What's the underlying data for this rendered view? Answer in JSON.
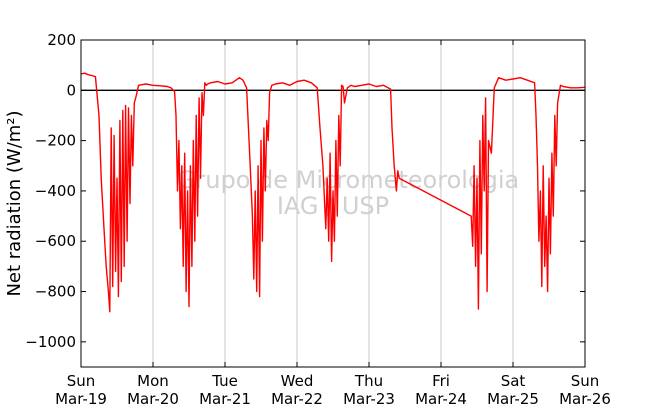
{
  "chart_data": {
    "type": "line",
    "ylabel": "Net radiation (W/m²)",
    "ylim": [
      -1100,
      200
    ],
    "yticks": [
      200,
      0,
      -200,
      -400,
      -600,
      -800,
      -1000
    ],
    "ytick_labels": [
      "200",
      "0",
      "−200",
      "−400",
      "−600",
      "−800",
      "−1000"
    ],
    "xlim": [
      0,
      7
    ],
    "xticks": [
      {
        "x": 0,
        "day": "Sun",
        "date": "Mar-19"
      },
      {
        "x": 1,
        "day": "Mon",
        "date": "Mar-20"
      },
      {
        "x": 2,
        "day": "Tue",
        "date": "Mar-21"
      },
      {
        "x": 3,
        "day": "Wed",
        "date": "Mar-22"
      },
      {
        "x": 4,
        "day": "Thu",
        "date": "Mar-23"
      },
      {
        "x": 5,
        "day": "Fri",
        "date": "Mar-24"
      },
      {
        "x": 6,
        "day": "Sat",
        "date": "Mar-25"
      },
      {
        "x": 7,
        "day": "Sun",
        "date": "Mar-26"
      }
    ],
    "grid": "vertical",
    "reference_line_y": 0,
    "series_color": "#ff0000",
    "watermark": [
      "Grupo de Micrometeorologia",
      "IAG / USP"
    ],
    "x": [
      0,
      0.05,
      0.1,
      0.2,
      0.25,
      0.28,
      0.32,
      0.35,
      0.38,
      0.4,
      0.42,
      0.44,
      0.46,
      0.48,
      0.5,
      0.52,
      0.54,
      0.56,
      0.58,
      0.6,
      0.62,
      0.64,
      0.66,
      0.68,
      0.7,
      0.72,
      0.74,
      0.76,
      0.8,
      0.9,
      1,
      1.1,
      1.2,
      1.25,
      1.3,
      1.32,
      1.34,
      1.36,
      1.38,
      1.4,
      1.42,
      1.44,
      1.46,
      1.48,
      1.5,
      1.52,
      1.54,
      1.56,
      1.58,
      1.6,
      1.62,
      1.64,
      1.66,
      1.68,
      1.7,
      1.72,
      1.74,
      1.76,
      1.8,
      1.9,
      2,
      2.1,
      2.2,
      2.25,
      2.3,
      2.35,
      2.38,
      2.4,
      2.42,
      2.44,
      2.46,
      2.48,
      2.5,
      2.52,
      2.54,
      2.56,
      2.58,
      2.6,
      2.62,
      2.65,
      2.7,
      2.8,
      2.9,
      3,
      3.1,
      3.2,
      3.28,
      3.32,
      3.36,
      3.4,
      3.42,
      3.44,
      3.46,
      3.48,
      3.5,
      3.52,
      3.54,
      3.56,
      3.58,
      3.6,
      3.62,
      3.64,
      3.66,
      3.7,
      3.75,
      3.8,
      3.9,
      4,
      4.1,
      4.2,
      4.3,
      4.32,
      4.35,
      4.38,
      4.4,
      4.42,
      5.42,
      5.44,
      5.46,
      5.48,
      5.5,
      5.52,
      5.54,
      5.56,
      5.58,
      5.6,
      5.62,
      5.64,
      5.66,
      5.7,
      5.74,
      5.8,
      5.9,
      6,
      6.1,
      6.2,
      6.3,
      6.32,
      6.34,
      6.36,
      6.38,
      6.4,
      6.42,
      6.44,
      6.46,
      6.48,
      6.5,
      6.52,
      6.54,
      6.56,
      6.58,
      6.6,
      6.62,
      6.66,
      6.7,
      6.8,
      6.9,
      7
    ],
    "y": [
      65,
      68,
      62,
      55,
      -100,
      -350,
      -550,
      -700,
      -800,
      -880,
      -150,
      -780,
      -180,
      -720,
      -350,
      -820,
      -120,
      -760,
      -80,
      -700,
      -60,
      -600,
      -70,
      -450,
      -100,
      -300,
      -50,
      -30,
      20,
      25,
      20,
      18,
      15,
      10,
      -5,
      -100,
      -400,
      -200,
      -550,
      -300,
      -700,
      -250,
      -800,
      -400,
      -860,
      -300,
      -700,
      -200,
      -600,
      -100,
      -500,
      -30,
      -350,
      -10,
      -100,
      30,
      20,
      25,
      30,
      35,
      25,
      30,
      50,
      40,
      10,
      -300,
      -500,
      -750,
      -400,
      -800,
      -300,
      -820,
      -200,
      -600,
      -150,
      -400,
      -120,
      -200,
      -10,
      20,
      25,
      30,
      20,
      35,
      40,
      30,
      10,
      -150,
      -300,
      -550,
      -350,
      -600,
      -250,
      -680,
      -400,
      -600,
      -200,
      -500,
      -100,
      -300,
      20,
      15,
      -50,
      10,
      20,
      15,
      20,
      25,
      15,
      20,
      5,
      -150,
      -300,
      -400,
      -320,
      -350,
      -500,
      -620,
      -300,
      -700,
      -350,
      -870,
      -200,
      -650,
      -100,
      -400,
      -30,
      -800,
      -200,
      -250,
      10,
      50,
      40,
      45,
      50,
      40,
      30,
      -100,
      -300,
      -600,
      -400,
      -780,
      -300,
      -700,
      -500,
      -800,
      -350,
      -650,
      -250,
      -500,
      -100,
      -300,
      -50,
      20,
      15,
      10,
      10,
      12
    ]
  }
}
